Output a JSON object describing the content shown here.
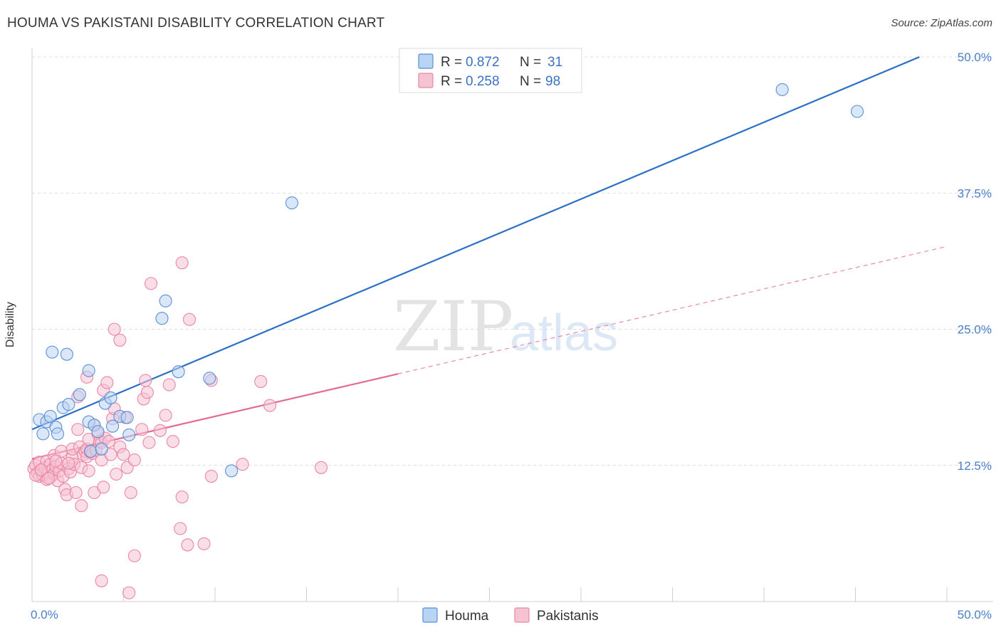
{
  "title": "HOUMA VS PAKISTANI DISABILITY CORRELATION CHART",
  "source": "Source: ZipAtlas.com",
  "watermark": {
    "zip": "ZIP",
    "atlas": "atlas"
  },
  "colors": {
    "houma": "#5b8fd6",
    "houma_fill": "#b9d3f3",
    "houma_line": "#2a6fc8",
    "pakistanis": "#ea86a6",
    "pakistanis_fill": "#f6c3d3",
    "pakistanis_line": "#e56a92",
    "axis_label": "#4a7ec9"
  },
  "legend": {
    "houma": {
      "r_label": "R =",
      "r_value": "0.872",
      "n_label": "N =",
      "n_value": "31"
    },
    "pakistanis": {
      "r_label": "R =",
      "r_value": "0.258",
      "n_label": "N =",
      "n_value": "98"
    }
  },
  "chart_data": {
    "type": "scatter",
    "title": "HOUMA VS PAKISTANI DISABILITY CORRELATION CHART",
    "xlabel": "",
    "ylabel": "Disability",
    "xlim": [
      0,
      50
    ],
    "ylim": [
      0,
      50
    ],
    "x_tick_labels": [
      "0.0%",
      "50.0%"
    ],
    "y_ticks": [
      12.5,
      25.0,
      37.5,
      50.0
    ],
    "y_tick_labels": [
      "12.5%",
      "25.0%",
      "37.5%",
      "50.0%"
    ],
    "grid": "horizontal dashed",
    "legend_position": "top-center",
    "series": [
      {
        "name": "Houma",
        "r": 0.872,
        "n": 31,
        "trend": {
          "x0": 0,
          "y0": 15.8,
          "x1": 48.5,
          "y1": 50.0,
          "style": "solid"
        },
        "points": [
          [
            0.4,
            16.7
          ],
          [
            0.6,
            15.4
          ],
          [
            0.8,
            16.5
          ],
          [
            1.0,
            17.0
          ],
          [
            1.1,
            22.9
          ],
          [
            1.3,
            16.0
          ],
          [
            1.4,
            15.4
          ],
          [
            1.7,
            17.8
          ],
          [
            1.9,
            22.7
          ],
          [
            2.0,
            18.1
          ],
          [
            2.6,
            19.0
          ],
          [
            3.1,
            16.5
          ],
          [
            3.1,
            21.2
          ],
          [
            3.2,
            13.8
          ],
          [
            3.4,
            16.2
          ],
          [
            3.6,
            15.6
          ],
          [
            3.8,
            14.0
          ],
          [
            4.0,
            18.2
          ],
          [
            4.3,
            18.7
          ],
          [
            4.4,
            16.1
          ],
          [
            4.8,
            17.0
          ],
          [
            5.2,
            16.9
          ],
          [
            5.3,
            15.3
          ],
          [
            7.1,
            26.0
          ],
          [
            7.3,
            27.6
          ],
          [
            8.0,
            21.1
          ],
          [
            9.7,
            20.5
          ],
          [
            10.9,
            12.0
          ],
          [
            14.2,
            36.6
          ],
          [
            41.0,
            47.0
          ],
          [
            45.1,
            45.0
          ]
        ]
      },
      {
        "name": "Pakistanis",
        "r": 0.258,
        "n": 98,
        "trend": {
          "x0": 0,
          "y0": 13.1,
          "x1": 50.0,
          "y1": 32.6,
          "solid_until_x": 20.0
        },
        "points": [
          [
            0.1,
            12.2
          ],
          [
            0.2,
            12.5
          ],
          [
            0.3,
            11.8
          ],
          [
            0.4,
            11.5
          ],
          [
            0.4,
            12.8
          ],
          [
            0.5,
            12.0
          ],
          [
            0.6,
            11.6
          ],
          [
            0.7,
            12.3
          ],
          [
            0.8,
            11.2
          ],
          [
            0.8,
            12.9
          ],
          [
            0.9,
            11.9
          ],
          [
            1.0,
            12.6
          ],
          [
            1.0,
            11.4
          ],
          [
            1.1,
            12.1
          ],
          [
            1.2,
            13.4
          ],
          [
            1.2,
            11.7
          ],
          [
            1.3,
            12.4
          ],
          [
            1.4,
            11.1
          ],
          [
            1.5,
            12.0
          ],
          [
            1.6,
            13.8
          ],
          [
            1.6,
            12.7
          ],
          [
            1.7,
            11.5
          ],
          [
            1.8,
            10.3
          ],
          [
            1.9,
            9.8
          ],
          [
            2.0,
            12.2
          ],
          [
            2.1,
            11.9
          ],
          [
            2.2,
            13.2
          ],
          [
            2.2,
            14.0
          ],
          [
            2.3,
            12.6
          ],
          [
            2.4,
            10.0
          ],
          [
            2.5,
            15.8
          ],
          [
            2.5,
            18.8
          ],
          [
            2.6,
            14.2
          ],
          [
            2.7,
            8.8
          ],
          [
            2.7,
            12.3
          ],
          [
            2.8,
            13.5
          ],
          [
            2.9,
            13.8
          ],
          [
            3.0,
            14.0
          ],
          [
            3.0,
            13.3
          ],
          [
            3.0,
            20.6
          ],
          [
            3.1,
            12.0
          ],
          [
            3.1,
            14.9
          ],
          [
            3.2,
            13.7
          ],
          [
            3.3,
            13.6
          ],
          [
            3.4,
            16.2
          ],
          [
            3.4,
            10.0
          ],
          [
            3.5,
            13.9
          ],
          [
            3.6,
            15.4
          ],
          [
            3.7,
            14.7
          ],
          [
            3.8,
            14.6
          ],
          [
            3.8,
            13.0
          ],
          [
            3.8,
            1.9
          ],
          [
            3.9,
            19.4
          ],
          [
            3.9,
            10.5
          ],
          [
            4.0,
            15.0
          ],
          [
            4.1,
            20.1
          ],
          [
            4.2,
            14.7
          ],
          [
            4.3,
            13.5
          ],
          [
            4.4,
            16.8
          ],
          [
            4.5,
            25.0
          ],
          [
            4.5,
            17.7
          ],
          [
            4.6,
            11.7
          ],
          [
            4.8,
            24.0
          ],
          [
            4.8,
            14.2
          ],
          [
            5.0,
            13.5
          ],
          [
            5.1,
            16.9
          ],
          [
            5.2,
            12.3
          ],
          [
            5.3,
            0.8
          ],
          [
            5.4,
            10.0
          ],
          [
            5.6,
            13.0
          ],
          [
            5.6,
            4.2
          ],
          [
            6.0,
            15.8
          ],
          [
            6.1,
            18.6
          ],
          [
            6.2,
            20.3
          ],
          [
            6.3,
            19.2
          ],
          [
            6.4,
            14.6
          ],
          [
            6.5,
            29.2
          ],
          [
            7.0,
            15.7
          ],
          [
            7.3,
            17.1
          ],
          [
            7.5,
            19.9
          ],
          [
            7.7,
            14.7
          ],
          [
            8.1,
            6.7
          ],
          [
            8.2,
            9.6
          ],
          [
            8.2,
            31.1
          ],
          [
            8.5,
            5.2
          ],
          [
            8.6,
            25.9
          ],
          [
            9.4,
            5.3
          ],
          [
            9.8,
            20.3
          ],
          [
            9.8,
            11.5
          ],
          [
            11.5,
            12.6
          ],
          [
            12.5,
            20.2
          ],
          [
            13.0,
            18.0
          ],
          [
            15.8,
            12.3
          ],
          [
            0.2,
            11.6
          ],
          [
            0.5,
            12.1
          ],
          [
            0.9,
            11.3
          ],
          [
            1.3,
            12.9
          ],
          [
            2.0,
            12.7
          ]
        ]
      }
    ]
  },
  "bottom_legend": [
    {
      "name": "Houma"
    },
    {
      "name": "Pakistanis"
    }
  ]
}
